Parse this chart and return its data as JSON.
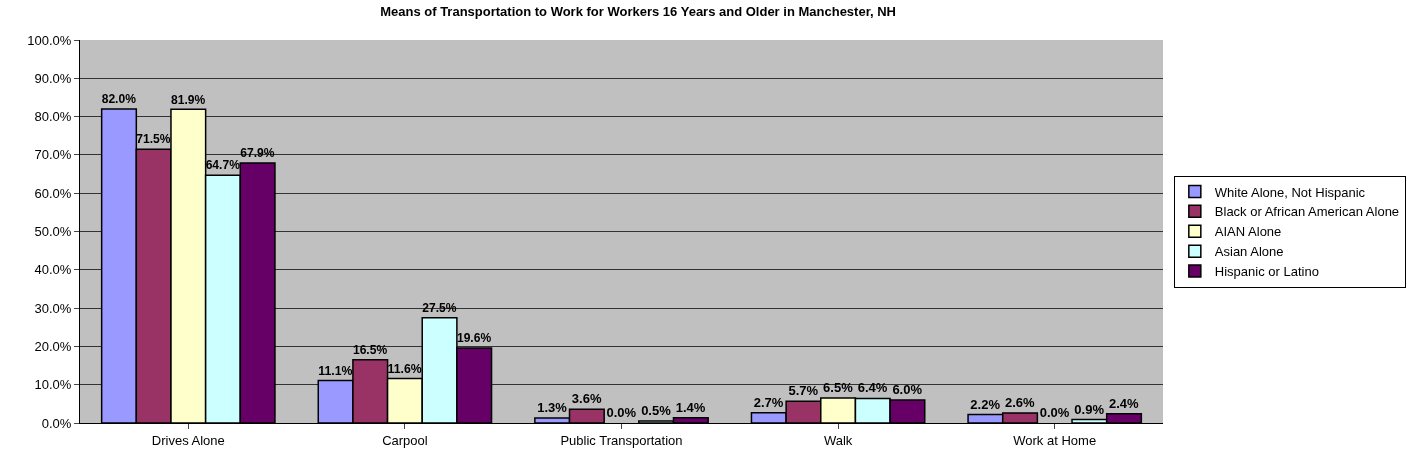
{
  "chart_data": {
    "type": "bar",
    "title": "Means of Transportation to Work for Workers 16 Years and Older in Manchester, NH",
    "categories": [
      "Drives Alone",
      "Carpool",
      "Public Transportation",
      "Walk",
      "Work at Home"
    ],
    "series": [
      {
        "name": "White Alone, Not Hispanic",
        "color": "#9999ff",
        "values": [
          82.0,
          11.1,
          1.3,
          2.7,
          2.2
        ],
        "value_labels": [
          "82.0%",
          "11.1%",
          "1.3%",
          "2.7%",
          "2.2%"
        ]
      },
      {
        "name": "Black or African American Alone",
        "color": "#993366",
        "values": [
          71.5,
          16.5,
          3.6,
          5.7,
          2.6
        ],
        "value_labels": [
          "71.5%",
          "16.5%",
          "3.6%",
          "5.7%",
          "2.6%"
        ]
      },
      {
        "name": "AIAN Alone",
        "color": "#ffffcc",
        "values": [
          81.9,
          11.6,
          0.0,
          6.5,
          0.0
        ],
        "value_labels": [
          "81.9%",
          "11.6%",
          "0.0%",
          "6.5%",
          "0.0%"
        ]
      },
      {
        "name": "Asian Alone",
        "color": "#ccffff",
        "values": [
          64.7,
          27.5,
          0.5,
          6.4,
          0.9
        ],
        "value_labels": [
          "64.7%",
          "27.5%",
          "0.5%",
          "6.4%",
          "0.9%"
        ]
      },
      {
        "name": "Hispanic or Latino",
        "color": "#660066",
        "values": [
          67.9,
          19.6,
          1.4,
          6.0,
          2.4
        ],
        "value_labels": [
          "67.9%",
          "19.6%",
          "1.4%",
          "6.0%",
          "2.4%"
        ]
      }
    ],
    "ylim": [
      0,
      100
    ],
    "yticks": [
      {
        "value": 0,
        "label": "0.0%"
      },
      {
        "value": 10,
        "label": "10.0%"
      },
      {
        "value": 20,
        "label": "20.0%"
      },
      {
        "value": 30,
        "label": "30.0%"
      },
      {
        "value": 40,
        "label": "40.0%"
      },
      {
        "value": 50,
        "label": "50.0%"
      },
      {
        "value": 60,
        "label": "60.0%"
      },
      {
        "value": 70,
        "label": "70.0%"
      },
      {
        "value": 80,
        "label": "80.0%"
      },
      {
        "value": 90,
        "label": "90.0%"
      },
      {
        "value": 100,
        "label": "100.0%"
      }
    ],
    "grid": "y",
    "legend": "right"
  }
}
